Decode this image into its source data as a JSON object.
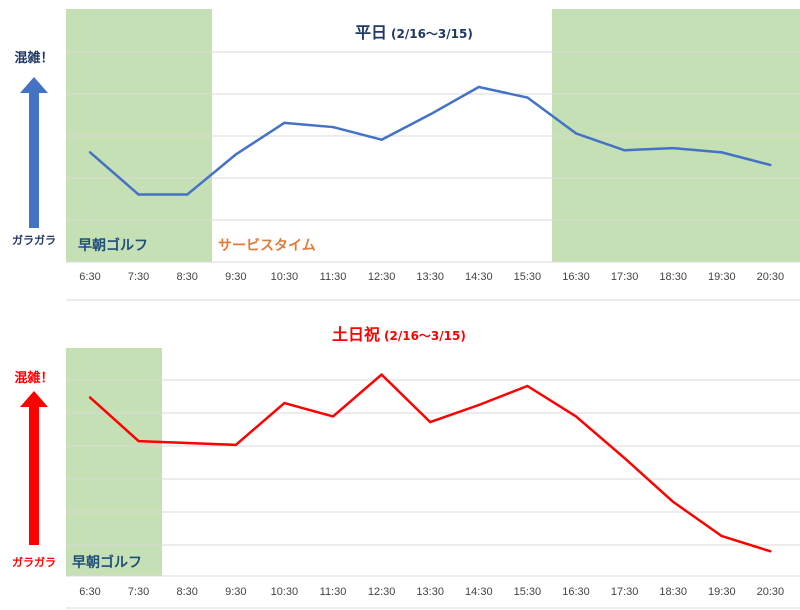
{
  "chart_data": [
    {
      "type": "line",
      "title": "平日",
      "subtitle": "(2/16〜3/15)",
      "categories": [
        "6:30",
        "7:30",
        "8:30",
        "9:30",
        "10:30",
        "11:30",
        "12:30",
        "13:30",
        "14:30",
        "15:30",
        "16:30",
        "17:30",
        "18:30",
        "19:30",
        "20:30"
      ],
      "series": [
        {
          "values": [
            2.6,
            1.6,
            1.6,
            2.55,
            3.3,
            3.2,
            2.9,
            3.5,
            4.15,
            3.9,
            3.05,
            2.65,
            2.7,
            2.6,
            2.3
          ],
          "color": "#4472c4"
        }
      ],
      "ylim": [
        0,
        6
      ],
      "grid": true,
      "shaded_regions": [
        {
          "label": "早朝ゴルフ",
          "from": "6:30",
          "to": "8:30",
          "color": "#c5e0b4",
          "label_color": "#1f4e79"
        },
        {
          "label": "サービスタイム",
          "from": "9:30",
          "to": "15:30",
          "color": "#ffffff",
          "label_color": "#e07b39"
        },
        {
          "label": "",
          "from": "16:30",
          "to": "20:30",
          "color": "#c5e0b4"
        }
      ],
      "axis_top_label": "混雑！",
      "axis_bottom_label": "ガラガラ",
      "axis_color": "#4472c4",
      "axis_label_color": "#1f3864",
      "title_color": "#1f3864"
    },
    {
      "type": "line",
      "title": "土日祝",
      "subtitle": "(2/16〜3/15)",
      "categories": [
        "6:30",
        "7:30",
        "8:30",
        "9:30",
        "10:30",
        "11:30",
        "12:30",
        "13:30",
        "14:30",
        "15:30",
        "16:30",
        "17:30",
        "18:30",
        "19:30",
        "20:30"
      ],
      "series": [
        {
          "values": [
            4.7,
            3.55,
            3.5,
            3.45,
            4.55,
            4.2,
            5.3,
            4.05,
            4.5,
            5.0,
            4.2,
            3.1,
            1.95,
            1.05,
            0.65
          ],
          "color": "#ff0000"
        }
      ],
      "ylim": [
        0,
        6
      ],
      "grid": true,
      "shaded_regions": [
        {
          "label": "早朝ゴルフ",
          "from": "6:30",
          "to": "7:30",
          "color": "#c5e0b4",
          "label_color": "#1f4e79"
        }
      ],
      "axis_top_label": "混雑！",
      "axis_bottom_label": "ガラガラ",
      "axis_color": "#ff0000",
      "axis_label_color": "#ff0000",
      "title_color": "#ff0000"
    }
  ]
}
